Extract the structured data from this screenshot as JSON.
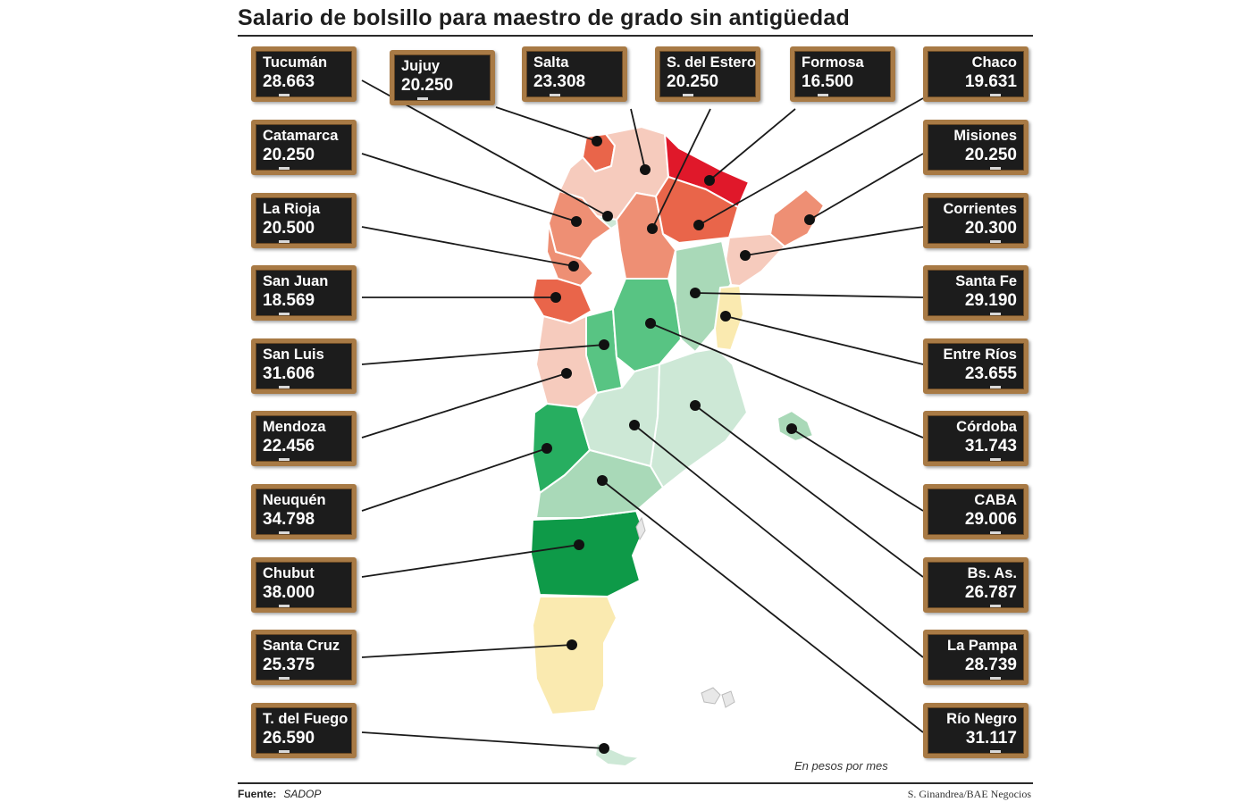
{
  "title": "Salario de bolsillo para maestro de grado sin antigüedad",
  "unit_note": "En pesos por mes",
  "source": {
    "label": "Fuente:",
    "value": "SADOP"
  },
  "credit": "S. Ginandrea/BAE Negocios",
  "colors": {
    "red": "#e0182a",
    "red_orange": "#e9654a",
    "orange": "#ee8f74",
    "salmon": "#f2b4a2",
    "light_salmon": "#f6cbbd",
    "pale_yellow": "#faeab0",
    "pale_green": "#cde8d6",
    "light_green": "#a9d9b8",
    "medium_green": "#58c483",
    "green": "#27ae60",
    "dark_green": "#0e9a48",
    "board_frame": "#a87a45",
    "board_bg": "#1c1c1c"
  },
  "provinces": [
    {
      "id": "tucuman",
      "name": "Tucumán",
      "value": "28.663",
      "color": "pale_green"
    },
    {
      "id": "jujuy",
      "name": "Jujuy",
      "value": "20.250",
      "color": "red_orange"
    },
    {
      "id": "salta",
      "name": "Salta",
      "value": "23.308",
      "color": "light_salmon"
    },
    {
      "id": "sdelestero",
      "name": "S. del Estero",
      "value": "20.250",
      "color": "orange"
    },
    {
      "id": "formosa",
      "name": "Formosa",
      "value": "16.500",
      "color": "red"
    },
    {
      "id": "chaco",
      "name": "Chaco",
      "value": "19.631",
      "color": "red_orange"
    },
    {
      "id": "catamarca",
      "name": "Catamarca",
      "value": "20.250",
      "color": "orange"
    },
    {
      "id": "misiones",
      "name": "Misiones",
      "value": "20.250",
      "color": "orange"
    },
    {
      "id": "larioja",
      "name": "La Rioja",
      "value": "20.500",
      "color": "orange"
    },
    {
      "id": "corrientes",
      "name": "Corrientes",
      "value": "20.300",
      "color": "light_salmon"
    },
    {
      "id": "sanjuan",
      "name": "San Juan",
      "value": "18.569",
      "color": "red_orange"
    },
    {
      "id": "santafe",
      "name": "Santa Fe",
      "value": "29.190",
      "color": "light_green"
    },
    {
      "id": "sanluis",
      "name": "San Luis",
      "value": "31.606",
      "color": "medium_green"
    },
    {
      "id": "entrerios",
      "name": "Entre Ríos",
      "value": "23.655",
      "color": "pale_yellow"
    },
    {
      "id": "mendoza",
      "name": "Mendoza",
      "value": "22.456",
      "color": "light_salmon"
    },
    {
      "id": "cordoba",
      "name": "Córdoba",
      "value": "31.743",
      "color": "medium_green"
    },
    {
      "id": "neuquen",
      "name": "Neuquén",
      "value": "34.798",
      "color": "green"
    },
    {
      "id": "caba",
      "name": "CABA",
      "value": "29.006",
      "color": "light_green"
    },
    {
      "id": "chubut",
      "name": "Chubut",
      "value": "38.000",
      "color": "dark_green"
    },
    {
      "id": "bsas",
      "name": "Bs. As.",
      "value": "26.787",
      "color": "pale_green"
    },
    {
      "id": "santacruz",
      "name": "Santa Cruz",
      "value": "25.375",
      "color": "pale_yellow"
    },
    {
      "id": "lapampa",
      "name": "La Pampa",
      "value": "28.739",
      "color": "pale_green"
    },
    {
      "id": "tdelfuego",
      "name": "T. del Fuego",
      "value": "26.590",
      "color": "pale_green"
    },
    {
      "id": "rionegro",
      "name": "Río Negro",
      "value": "31.117",
      "color": "light_green"
    }
  ]
}
